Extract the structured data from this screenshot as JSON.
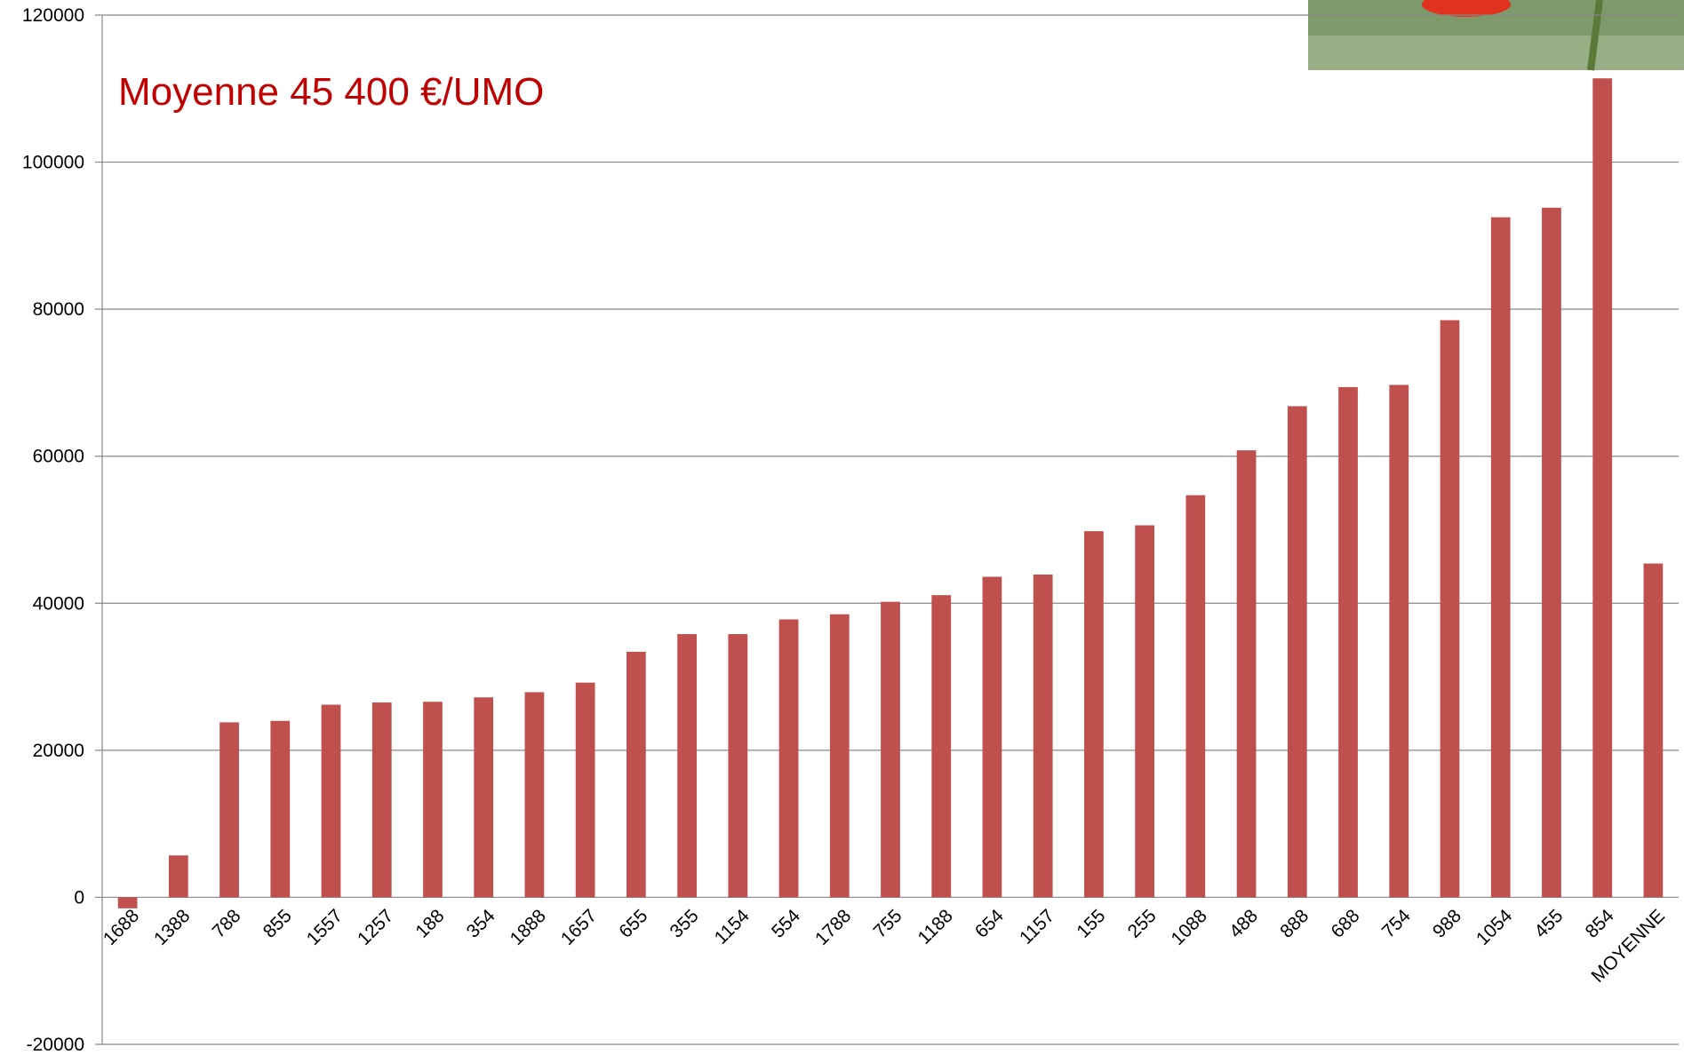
{
  "chart_data": {
    "type": "bar",
    "annotation": "Moyenne 45 400 €/UMO",
    "categories": [
      "1688",
      "1388",
      "788",
      "855",
      "1557",
      "1257",
      "188",
      "354",
      "1888",
      "1657",
      "655",
      "355",
      "1154",
      "554",
      "1788",
      "755",
      "1188",
      "654",
      "1157",
      "155",
      "255",
      "1088",
      "488",
      "888",
      "688",
      "754",
      "988",
      "1054",
      "455",
      "854",
      "MOYENNE"
    ],
    "values": [
      -1500,
      5700,
      23800,
      24000,
      26200,
      26500,
      26600,
      27200,
      27900,
      29200,
      33400,
      35800,
      35800,
      37800,
      38500,
      40200,
      41100,
      43600,
      43900,
      49800,
      50600,
      54700,
      60800,
      66800,
      69400,
      69700,
      78500,
      92500,
      93800,
      111400,
      45400
    ],
    "color": "#c0504d",
    "ylim": [
      -20000,
      120000
    ],
    "yticks": [
      -20000,
      0,
      20000,
      40000,
      60000,
      80000,
      100000,
      120000
    ],
    "grid": true
  }
}
